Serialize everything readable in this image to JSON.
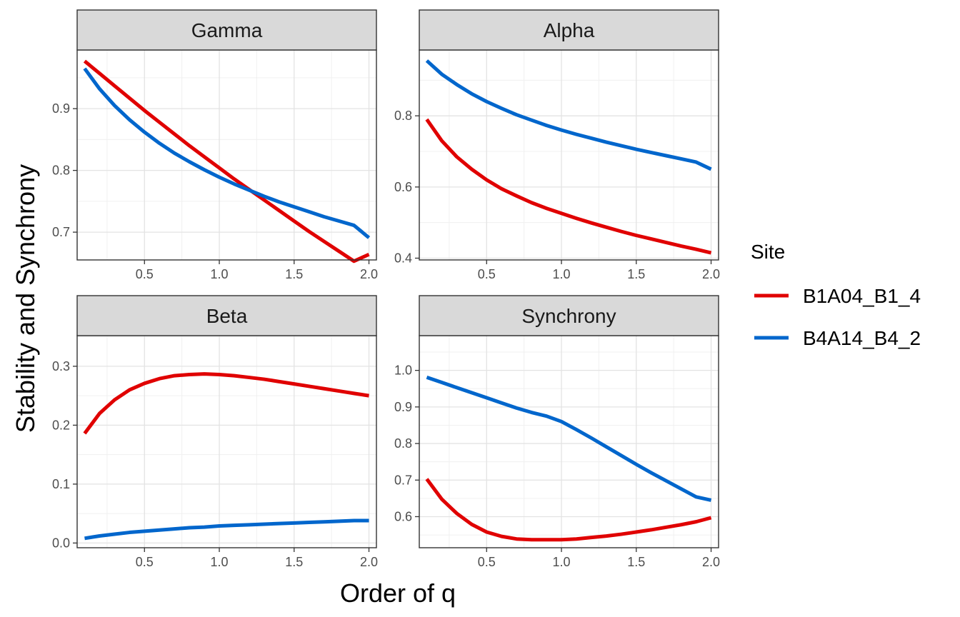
{
  "chart_data": {
    "type": "line",
    "xlabel": "Order of q",
    "ylabel": "Stability and Synchrony",
    "grid": true,
    "legend": {
      "title": "Site",
      "placement": "right",
      "entries": [
        "B1A04_B1_4",
        "B4A14_B4_2"
      ]
    },
    "colors": {
      "B1A04_B1_4": "#e00000",
      "B4A14_B4_2": "#0066cc"
    },
    "x_ticks": [
      0.5,
      1.0,
      1.5,
      2.0
    ],
    "x_tick_labels": [
      "0.5",
      "1.0",
      "1.5",
      "2.0"
    ],
    "xlim": [
      0.05,
      2.05
    ],
    "x": [
      0.1,
      0.2,
      0.3,
      0.4,
      0.5,
      0.6,
      0.7,
      0.8,
      0.9,
      1.0,
      1.1,
      1.2,
      1.3,
      1.4,
      1.5,
      1.6,
      1.7,
      1.8,
      1.9,
      2.0
    ],
    "panels": [
      {
        "title": "Gamma",
        "ylim": [
          0.655,
          0.995
        ],
        "y_ticks": [
          0.7,
          0.8,
          0.9
        ],
        "y_tick_labels": [
          "0.7",
          "0.8",
          "0.9"
        ],
        "series": [
          {
            "name": "B1A04_B1_4",
            "values": [
              0.977,
              0.957,
              0.937,
              0.917,
              0.897,
              0.878,
              0.859,
              0.84,
              0.822,
              0.804,
              0.786,
              0.769,
              0.752,
              0.735,
              0.718,
              0.701,
              0.685,
              0.669,
              0.653,
              0.664
            ]
          },
          {
            "name": "B4A14_B4_2",
            "values": [
              0.965,
              0.932,
              0.905,
              0.882,
              0.862,
              0.844,
              0.828,
              0.814,
              0.801,
              0.789,
              0.778,
              0.768,
              0.758,
              0.749,
              0.741,
              0.733,
              0.725,
              0.718,
              0.711,
              0.691
            ]
          }
        ]
      },
      {
        "title": "Alpha",
        "ylim": [
          0.395,
          0.985
        ],
        "y_ticks": [
          0.4,
          0.6,
          0.8
        ],
        "y_tick_labels": [
          "0.4",
          "0.6",
          "0.8"
        ],
        "series": [
          {
            "name": "B1A04_B1_4",
            "values": [
              0.79,
              0.73,
              0.685,
              0.65,
              0.62,
              0.595,
              0.575,
              0.556,
              0.54,
              0.526,
              0.512,
              0.499,
              0.487,
              0.475,
              0.464,
              0.454,
              0.444,
              0.434,
              0.425,
              0.415
            ]
          },
          {
            "name": "B4A14_B4_2",
            "values": [
              0.955,
              0.917,
              0.888,
              0.862,
              0.84,
              0.821,
              0.803,
              0.788,
              0.773,
              0.76,
              0.748,
              0.737,
              0.726,
              0.716,
              0.706,
              0.697,
              0.688,
              0.679,
              0.67,
              0.65
            ]
          }
        ]
      },
      {
        "title": "Beta",
        "ylim": [
          -0.008,
          0.352
        ],
        "y_ticks": [
          0.0,
          0.1,
          0.2,
          0.3
        ],
        "y_tick_labels": [
          "0.0",
          "0.1",
          "0.2",
          "0.3"
        ],
        "series": [
          {
            "name": "B1A04_B1_4",
            "values": [
              0.186,
              0.22,
              0.243,
              0.26,
              0.271,
              0.279,
              0.284,
              0.286,
              0.287,
              0.286,
              0.284,
              0.281,
              0.278,
              0.274,
              0.27,
              0.266,
              0.262,
              0.258,
              0.254,
              0.25
            ]
          },
          {
            "name": "B4A14_B4_2",
            "values": [
              0.008,
              0.012,
              0.015,
              0.018,
              0.02,
              0.022,
              0.024,
              0.026,
              0.027,
              0.029,
              0.03,
              0.031,
              0.032,
              0.033,
              0.034,
              0.035,
              0.036,
              0.037,
              0.038,
              0.038
            ]
          }
        ]
      },
      {
        "title": "Synchrony",
        "ylim": [
          0.515,
          1.095
        ],
        "y_ticks": [
          0.6,
          0.7,
          0.8,
          0.9,
          1.0
        ],
        "y_tick_labels": [
          "0.6",
          "0.7",
          "0.8",
          "0.9",
          "1.0"
        ],
        "series": [
          {
            "name": "B1A04_B1_4",
            "values": [
              0.703,
              0.648,
              0.609,
              0.579,
              0.558,
              0.546,
              0.539,
              0.537,
              0.537,
              0.537,
              0.539,
              0.543,
              0.547,
              0.552,
              0.558,
              0.564,
              0.571,
              0.578,
              0.586,
              0.597
            ]
          },
          {
            "name": "B4A14_B4_2",
            "values": [
              0.981,
              0.967,
              0.953,
              0.939,
              0.925,
              0.911,
              0.897,
              0.885,
              0.875,
              0.86,
              0.838,
              0.815,
              0.791,
              0.767,
              0.743,
              0.72,
              0.698,
              0.676,
              0.654,
              0.645
            ]
          }
        ]
      }
    ]
  }
}
